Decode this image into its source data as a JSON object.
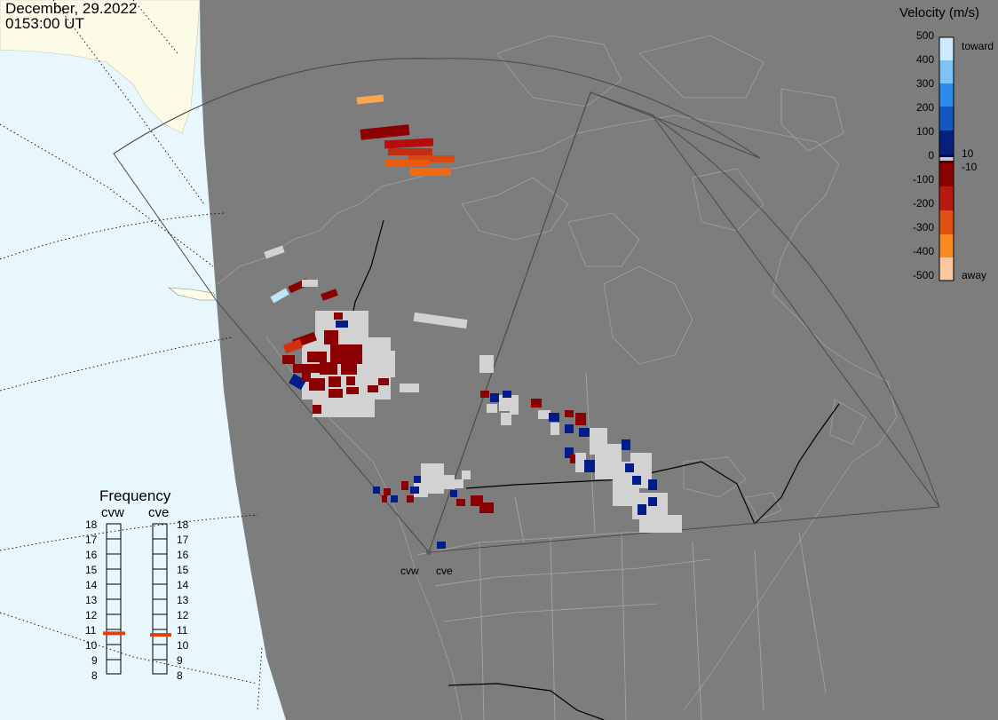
{
  "header": {
    "date": "December, 29.2022",
    "time": "0153:00 UT"
  },
  "velocity_scale": {
    "title": "Velocity (m/s)",
    "ticks": [
      "500",
      "400",
      "300",
      "200",
      "100",
      "0",
      "-100",
      "-200",
      "-300",
      "-400",
      "-500"
    ],
    "note_toward": "toward",
    "note_away": "away",
    "note_plus10": "10",
    "note_minus10": "-10",
    "colors": {
      "toward_light": "#cde9fb",
      "toward_mid": "#1f8ae8",
      "toward_dark": "#000a7a",
      "away_dark": "#8b0000",
      "away_mid": "#e85a10",
      "away_light": "#fde0c0",
      "groundscatter": "#d2d2d2"
    }
  },
  "frequency_panel": {
    "title": "Frequency",
    "radars": [
      {
        "name": "cvw",
        "frequency_mhz": 10.7
      },
      {
        "name": "cve",
        "frequency_mhz": 10.6
      }
    ],
    "ticks": [
      "18",
      "17",
      "16",
      "15",
      "14",
      "13",
      "12",
      "11",
      "10",
      "9",
      "8"
    ]
  },
  "radars": [
    {
      "name": "cvw"
    },
    {
      "name": "cve"
    }
  ],
  "map_colors": {
    "ocean": "#e8f6fe",
    "land_daylight": "#fbfbe8",
    "night": "#7d7d7d",
    "coast": "#9a9a9a"
  }
}
